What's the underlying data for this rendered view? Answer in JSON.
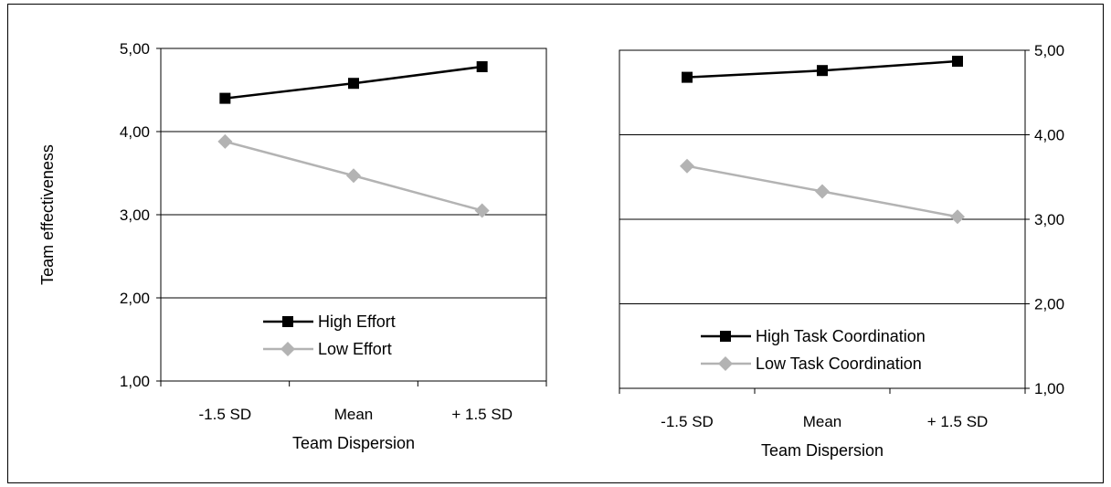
{
  "chart_data": [
    {
      "type": "line",
      "categories": [
        "-1.5 SD",
        "Mean",
        "+ 1.5 SD"
      ],
      "series": [
        {
          "name": "High Effort",
          "values": [
            4.4,
            4.58,
            4.78
          ],
          "color": "#000000",
          "marker": "square"
        },
        {
          "name": "Low Effort",
          "values": [
            3.88,
            3.47,
            3.05
          ],
          "color": "#b3b3b3",
          "marker": "diamond"
        }
      ],
      "xlabel": "Team Dispersion",
      "ylabel": "Team effectiveness",
      "ylim": [
        1,
        5
      ],
      "yticks": [
        "1,00",
        "2,00",
        "3,00",
        "4,00",
        "5,00"
      ],
      "y_axis_side": "left",
      "grid": true,
      "legend": "bottom-center"
    },
    {
      "type": "line",
      "categories": [
        "-1.5 SD",
        "Mean",
        "+ 1.5 SD"
      ],
      "series": [
        {
          "name": "High Task Coordination",
          "values": [
            4.68,
            4.76,
            4.87
          ],
          "color": "#000000",
          "marker": "square"
        },
        {
          "name": "Low Task Coordination",
          "values": [
            3.63,
            3.33,
            3.03
          ],
          "color": "#b3b3b3",
          "marker": "diamond"
        }
      ],
      "xlabel": "Team Dispersion",
      "ylabel": "",
      "ylim": [
        1,
        5
      ],
      "yticks": [
        "1,00",
        "2,00",
        "3,00",
        "4,00",
        "5,00"
      ],
      "y_axis_side": "right",
      "grid": true,
      "legend": "bottom-center"
    }
  ]
}
